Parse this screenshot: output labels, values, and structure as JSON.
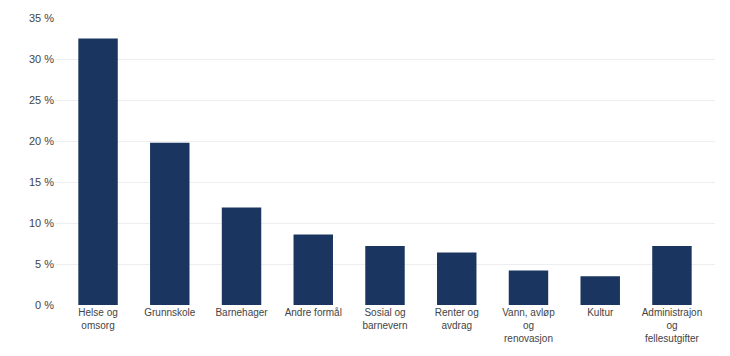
{
  "chart_data": {
    "type": "bar",
    "categories": [
      "Helse og\nomsorg",
      "Grunnskole",
      "Barnehager",
      "Andre formål",
      "Sosial og\nbarnevern",
      "Renter og\navdrag",
      "Vann, avløp\nog\nrenovasjon",
      "Kultur",
      "Administrajon\nog\nfellesutgifter"
    ],
    "values": [
      32.5,
      19.8,
      11.9,
      8.6,
      7.2,
      6.4,
      4.2,
      3.5,
      7.2
    ],
    "color": "#1a3560",
    "ylim": [
      0,
      35
    ],
    "yticks": [
      {
        "value": 0,
        "label": "0 %"
      },
      {
        "value": 5,
        "label": "5 %"
      },
      {
        "value": 10,
        "label": "10 %"
      },
      {
        "value": 15,
        "label": "15 %"
      },
      {
        "value": 20,
        "label": "20 %"
      },
      {
        "value": 25,
        "label": "25 %"
      },
      {
        "value": 30,
        "label": "30 %"
      },
      {
        "value": 35,
        "label": "35 %"
      }
    ],
    "grid": true
  }
}
